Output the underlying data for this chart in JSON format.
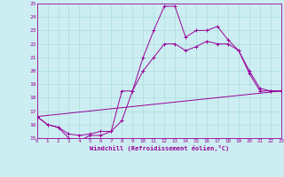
{
  "xlabel": "Windchill (Refroidissement éolien,°C)",
  "bg_color": "#cceef2",
  "line_color": "#990099",
  "grid_color": "#aadddd",
  "ylim": [
    15,
    25
  ],
  "xlim": [
    0,
    23
  ],
  "yticks": [
    15,
    16,
    17,
    18,
    19,
    20,
    21,
    22,
    23,
    24,
    25
  ],
  "xticks": [
    0,
    1,
    2,
    3,
    4,
    5,
    6,
    7,
    8,
    9,
    10,
    11,
    12,
    13,
    14,
    15,
    16,
    17,
    18,
    19,
    20,
    21,
    22,
    23
  ],
  "line1_x": [
    0,
    1,
    2,
    3,
    4,
    5,
    6,
    7,
    8,
    9,
    10,
    11,
    12,
    13,
    14,
    15,
    16,
    17,
    18,
    19,
    20,
    21,
    22,
    23
  ],
  "line1_y": [
    16.6,
    16.0,
    15.8,
    15.0,
    14.8,
    15.2,
    15.2,
    15.5,
    16.3,
    18.5,
    21.0,
    23.0,
    24.8,
    24.8,
    22.5,
    23.0,
    23.0,
    23.3,
    22.3,
    21.5,
    19.8,
    18.5,
    18.5,
    18.5
  ],
  "line2_x": [
    0,
    1,
    2,
    3,
    4,
    5,
    6,
    7,
    8,
    9,
    10,
    11,
    12,
    13,
    14,
    15,
    16,
    17,
    18,
    19,
    20,
    21,
    22,
    23
  ],
  "line2_y": [
    16.6,
    16.0,
    15.8,
    15.3,
    15.2,
    15.3,
    15.5,
    15.5,
    18.5,
    18.5,
    20.0,
    21.0,
    22.0,
    22.0,
    21.5,
    21.8,
    22.2,
    22.0,
    22.0,
    21.5,
    20.0,
    18.7,
    18.5,
    18.5
  ],
  "line3_x": [
    0,
    23
  ],
  "line3_y": [
    16.6,
    18.5
  ]
}
